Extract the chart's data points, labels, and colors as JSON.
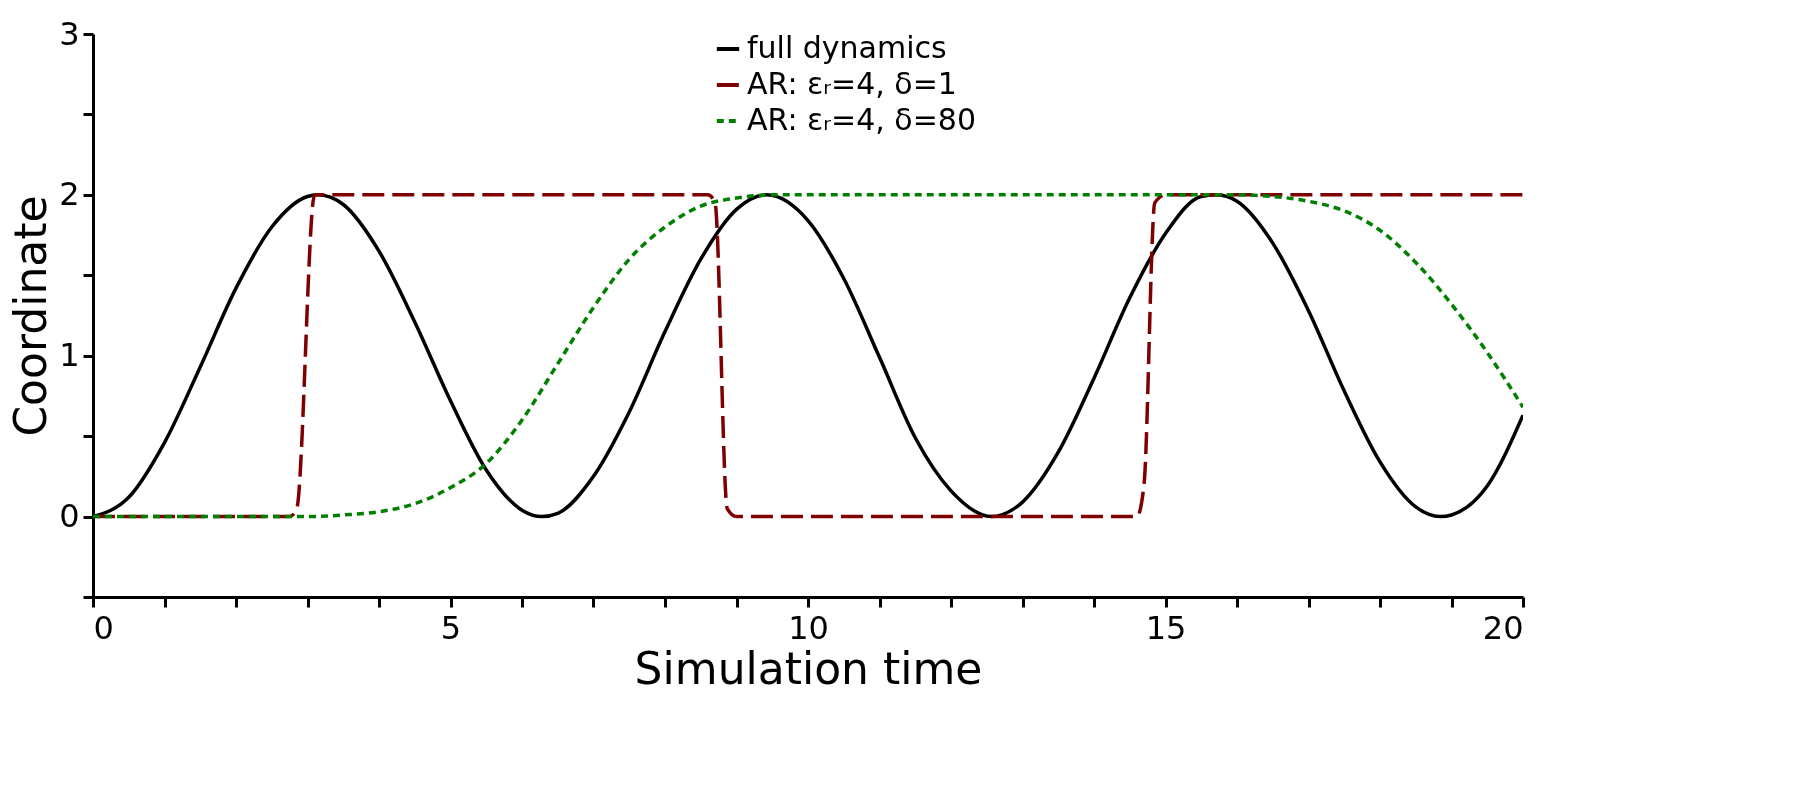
{
  "chart_data": {
    "type": "line",
    "xlabel": "Simulation time",
    "ylabel": "Coordinate",
    "xlim": [
      0,
      20
    ],
    "ylim": [
      -0.5,
      3
    ],
    "xticks": [
      0,
      {
        "value": 1,
        "label": null
      },
      {
        "value": 2,
        "label": null
      },
      {
        "value": 3,
        "label": null
      },
      {
        "value": 4,
        "label": null
      },
      5,
      {
        "value": 6,
        "label": null
      },
      {
        "value": 7,
        "label": null
      },
      {
        "value": 8,
        "label": null
      },
      {
        "value": 9,
        "label": null
      },
      10,
      {
        "value": 11,
        "label": null
      },
      {
        "value": 12,
        "label": null
      },
      {
        "value": 13,
        "label": null
      },
      {
        "value": 14,
        "label": null
      },
      15,
      {
        "value": 16,
        "label": null
      },
      {
        "value": 17,
        "label": null
      },
      {
        "value": 18,
        "label": null
      },
      {
        "value": 19,
        "label": null
      },
      20
    ],
    "yticks": [
      {
        "value": -0.5,
        "label": null
      },
      0,
      {
        "value": 0.5,
        "label": null
      },
      1,
      {
        "value": 1.5,
        "label": null
      },
      2,
      {
        "value": 2.5,
        "label": null
      },
      3
    ],
    "grid": false,
    "legend": "top",
    "marker": "none",
    "series": [
      {
        "name": "full dynamics",
        "color": "#000000",
        "line_style": "solid",
        "x": [
          0,
          0.5,
          1,
          1.5,
          2,
          2.5,
          3,
          3.14,
          3.5,
          4,
          4.5,
          5,
          5.5,
          6,
          6.28,
          6.5,
          7,
          7.5,
          8,
          8.5,
          9,
          9.42,
          10,
          10.5,
          11,
          11.5,
          12,
          12.57,
          13,
          13.5,
          14,
          14.5,
          15,
          15.5,
          15.71,
          16,
          16.5,
          17,
          17.5,
          18,
          18.5,
          18.85,
          19,
          19.5,
          20
        ],
        "values": [
          0,
          0.12,
          0.46,
          0.93,
          1.42,
          1.8,
          1.99,
          2,
          1.94,
          1.65,
          1.21,
          0.72,
          0.29,
          0.04,
          0,
          0.02,
          0.25,
          0.65,
          1.15,
          1.6,
          1.91,
          2,
          1.84,
          1.48,
          0.99,
          0.49,
          0.16,
          0,
          0.09,
          0.4,
          0.86,
          1.36,
          1.76,
          1.99,
          2,
          1.96,
          1.7,
          1.28,
          0.78,
          0.34,
          0.06,
          0,
          0.01,
          0.19,
          0.63
        ]
      },
      {
        "name": "AR: εᵣ=4, δ=1",
        "color": "#7f0000",
        "line_style": "dashed",
        "x": [
          0,
          2.75,
          2.85,
          3.1,
          3.3,
          8.6,
          8.7,
          8.87,
          9.0,
          14.6,
          14.7,
          14.85,
          15.0,
          20
        ],
        "values": [
          0,
          0,
          0.05,
          2,
          2,
          2,
          1.95,
          0.05,
          0,
          0,
          0.2,
          1.95,
          2,
          2
        ]
      },
      {
        "name": "AR: εᵣ=4, δ=80",
        "color": "#008000",
        "line_style": "dotted",
        "x": [
          0,
          3,
          3.5,
          4,
          4.5,
          5,
          5.5,
          6,
          6.5,
          7,
          7.5,
          8,
          8.5,
          9,
          9.5,
          10,
          16,
          16.5,
          17,
          17.5,
          18,
          18.5,
          19,
          19.5,
          20
        ],
        "values": [
          0,
          0,
          0.01,
          0.03,
          0.08,
          0.18,
          0.33,
          0.6,
          0.95,
          1.3,
          1.6,
          1.8,
          1.93,
          1.98,
          2,
          2,
          2,
          1.99,
          1.96,
          1.9,
          1.78,
          1.58,
          1.32,
          1.02,
          0.68
        ]
      }
    ]
  }
}
